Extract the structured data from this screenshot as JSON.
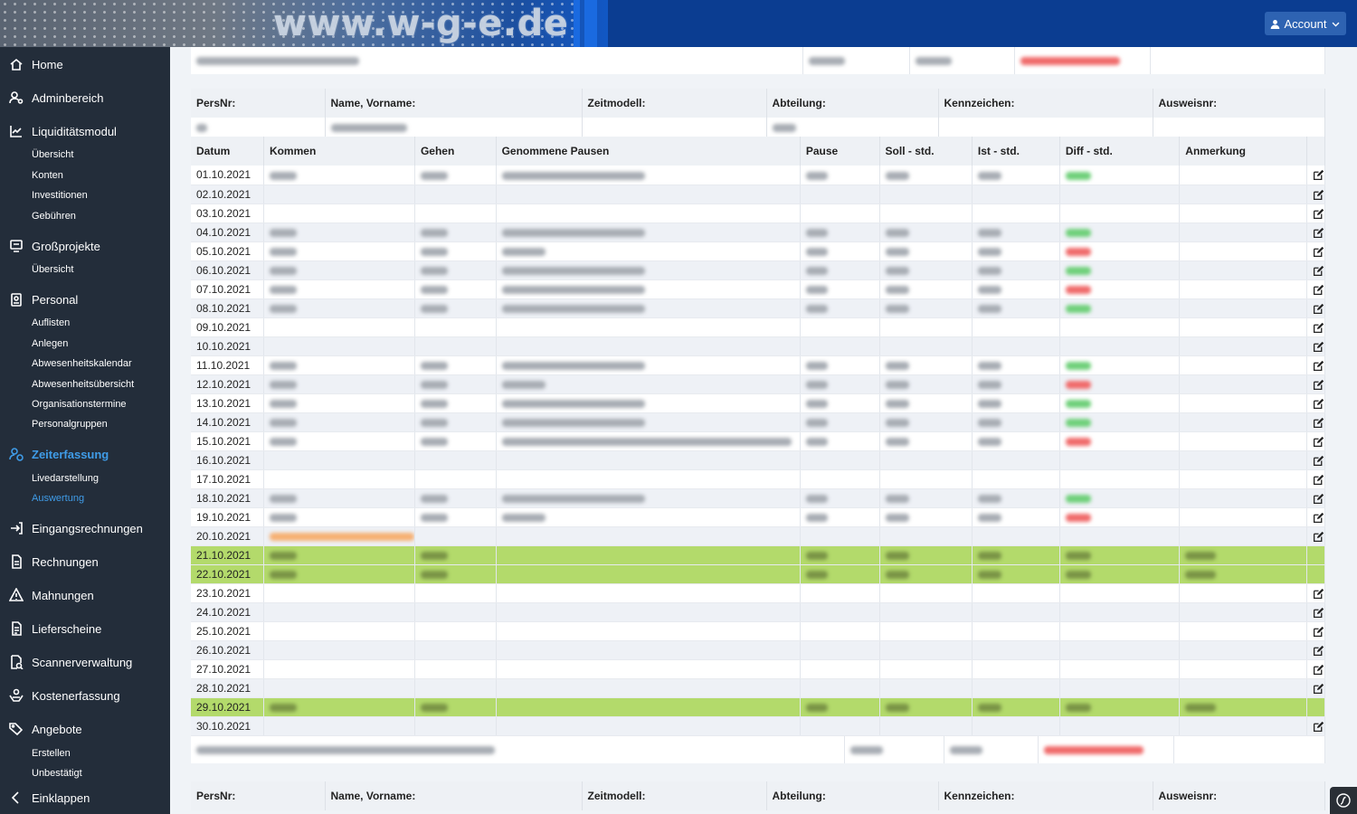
{
  "header": {
    "logo_text": "www.w-g-e.de",
    "account_label": "Account"
  },
  "sidebar": {
    "items": [
      {
        "label": "Home",
        "icon": "home-icon"
      },
      {
        "label": "Adminbereich",
        "icon": "users-cog-icon"
      },
      {
        "label": "Liquiditätsmodul",
        "icon": "chart-line-icon"
      },
      {
        "label": "Übersicht"
      },
      {
        "label": "Konten"
      },
      {
        "label": "Investitionen"
      },
      {
        "label": "Gebühren"
      },
      {
        "label": "Großprojekte",
        "icon": "project-diagram-icon"
      },
      {
        "label": "Übersicht"
      },
      {
        "label": "Personal",
        "icon": "id-badge-icon"
      },
      {
        "label": "Auflisten"
      },
      {
        "label": "Anlegen"
      },
      {
        "label": "Abwesenheitskalendar"
      },
      {
        "label": "Abwesenheitsübersicht"
      },
      {
        "label": "Organisationstermine"
      },
      {
        "label": "Personalgruppen"
      },
      {
        "label": "Zeiterfassung",
        "icon": "user-clock-icon"
      },
      {
        "label": "Livedarstellung"
      },
      {
        "label": "Auswertung"
      },
      {
        "label": "Eingangsrechnungen",
        "icon": "sign-in-icon"
      },
      {
        "label": "Rechnungen",
        "icon": "file-invoice-icon"
      },
      {
        "label": "Mahnungen",
        "icon": "warning-icon"
      },
      {
        "label": "Lieferscheine",
        "icon": "file-list-icon"
      },
      {
        "label": "Scannerverwaltung",
        "icon": "scanner-search-icon"
      },
      {
        "label": "Kostenerfassung",
        "icon": "hand-coins-icon"
      },
      {
        "label": "Angebote",
        "icon": "tags-icon"
      },
      {
        "label": "Erstellen"
      },
      {
        "label": "Unbestätigt"
      },
      {
        "label": "Einklappen",
        "icon": "chevron-left-icon"
      }
    ]
  },
  "employee_header": {
    "persnr": "PersNr:",
    "name": "Name, Vorname:",
    "zeitmodell": "Zeitmodell:",
    "abteilung": "Abteilung:",
    "kennzeichen": "Kennzeichen:",
    "ausweisnr": "Ausweisnr:"
  },
  "columns": {
    "datum": "Datum",
    "kommen": "Kommen",
    "gehen": "Gehen",
    "pausen": "Genommene Pausen",
    "pause": "Pause",
    "soll": "Soll - std.",
    "ist": "Ist - std.",
    "diff": "Diff - std.",
    "anmerkung": "Anmerkung"
  },
  "rows": [
    {
      "date": "01.10.2021"
    },
    {
      "date": "02.10.2021"
    },
    {
      "date": "03.10.2021"
    },
    {
      "date": "04.10.2021"
    },
    {
      "date": "05.10.2021"
    },
    {
      "date": "06.10.2021"
    },
    {
      "date": "07.10.2021"
    },
    {
      "date": "08.10.2021"
    },
    {
      "date": "09.10.2021"
    },
    {
      "date": "10.10.2021"
    },
    {
      "date": "11.10.2021"
    },
    {
      "date": "12.10.2021"
    },
    {
      "date": "13.10.2021"
    },
    {
      "date": "14.10.2021"
    },
    {
      "date": "15.10.2021"
    },
    {
      "date": "16.10.2021"
    },
    {
      "date": "17.10.2021"
    },
    {
      "date": "18.10.2021"
    },
    {
      "date": "19.10.2021"
    },
    {
      "date": "20.10.2021"
    },
    {
      "date": "21.10.2021"
    },
    {
      "date": "22.10.2021"
    },
    {
      "date": "23.10.2021"
    },
    {
      "date": "24.10.2021"
    },
    {
      "date": "25.10.2021"
    },
    {
      "date": "26.10.2021"
    },
    {
      "date": "27.10.2021"
    },
    {
      "date": "28.10.2021"
    },
    {
      "date": "29.10.2021"
    },
    {
      "date": "30.10.2021"
    }
  ],
  "colors": {
    "header_bg": "#0b3d91",
    "sidebar_bg": "#232d3a",
    "active": "#3f9ce8",
    "green_row": "#b3da6b"
  }
}
